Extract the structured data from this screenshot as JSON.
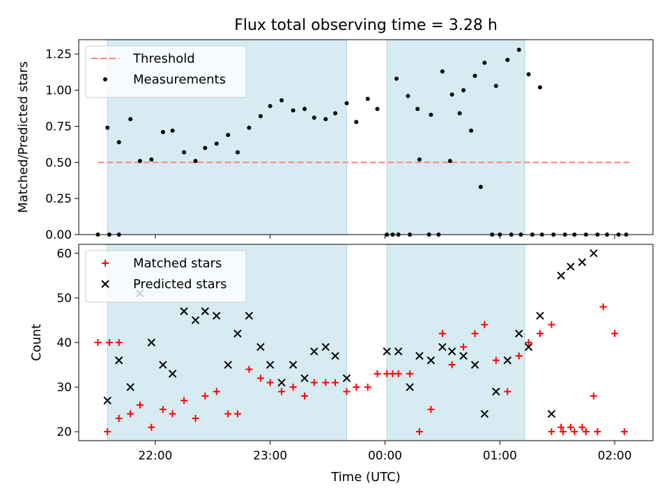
{
  "chart_data": [
    {
      "type": "scatter",
      "title": "Flux total observing time = 3.28 h",
      "xlabel": "",
      "ylabel": "Matched/Predicted stars",
      "xlim": [
        "21:20",
        "02:20"
      ],
      "ylim": [
        0,
        1.35
      ],
      "y_ticks": [
        "0.00",
        "0.25",
        "0.50",
        "0.75",
        "1.00",
        "1.25"
      ],
      "y_tick_values": [
        0,
        0.25,
        0.5,
        0.75,
        1.0,
        1.25
      ],
      "shaded_intervals": [
        [
          "21:35",
          "23:40"
        ],
        [
          "00:01",
          "01:13"
        ]
      ],
      "legend_position": "upper-left",
      "series": [
        {
          "name": "Threshold",
          "style": "dashed-line",
          "color": "#ff7f7f",
          "x": [
            "21:30",
            "02:08"
          ],
          "y": [
            0.5,
            0.5
          ]
        },
        {
          "name": "Measurements",
          "style": "dot",
          "color": "#000000",
          "x": [
            "21:30",
            "21:36",
            "21:41",
            "21:35",
            "21:41",
            "21:47",
            "21:52",
            "21:58",
            "22:04",
            "22:09",
            "22:15",
            "22:21",
            "22:26",
            "22:32",
            "22:38",
            "22:43",
            "22:49",
            "22:55",
            "23:00",
            "23:06",
            "23:12",
            "23:18",
            "23:23",
            "23:29",
            "23:34",
            "23:40",
            "23:45",
            "23:51",
            "23:56",
            "00:01",
            "00:04",
            "00:07",
            "00:13",
            "00:18",
            "00:24",
            "00:30",
            "00:35",
            "00:41",
            "00:47",
            "00:52",
            "00:58",
            "01:04",
            "01:10",
            "01:15",
            "01:21",
            "00:06",
            "00:12",
            "00:17",
            "00:23",
            "00:28",
            "00:34",
            "00:39",
            "00:45",
            "00:50",
            "00:56",
            "01:00",
            "01:06",
            "01:11",
            "01:17",
            "01:22",
            "01:28",
            "01:34",
            "01:39",
            "01:45",
            "01:51",
            "01:56",
            "02:02",
            "02:06"
          ],
          "y": [
            0,
            0,
            0,
            0.74,
            0.64,
            0.8,
            0.51,
            0.52,
            0.71,
            0.72,
            0.57,
            0.51,
            0.6,
            0.63,
            0.69,
            0.57,
            0.74,
            0.82,
            0.89,
            0.93,
            0.86,
            0.87,
            0.81,
            0.8,
            0.84,
            0.91,
            0.78,
            0.94,
            0.87,
            0,
            0,
            0,
            0,
            0.52,
            0.83,
            1.13,
            0.97,
            1.0,
            1.1,
            1.19,
            1.03,
            1.21,
            1.28,
            1.11,
            1.02,
            1.08,
            0.96,
            0.87,
            0,
            0,
            0.51,
            0.84,
            0.72,
            0.33,
            0,
            0,
            0,
            0,
            0,
            0,
            0,
            0,
            0,
            0,
            0,
            0,
            0,
            0
          ]
        }
      ]
    },
    {
      "type": "scatter",
      "title": "",
      "xlabel": "Time (UTC)",
      "ylabel": "Count",
      "xlim": [
        "21:20",
        "02:20"
      ],
      "ylim": [
        18,
        62
      ],
      "x_ticks": [
        "22:00",
        "23:00",
        "00:00",
        "01:00",
        "02:00"
      ],
      "y_ticks": [
        "20",
        "30",
        "40",
        "50",
        "60"
      ],
      "y_tick_values": [
        20,
        30,
        40,
        50,
        60
      ],
      "shaded_intervals": [
        [
          "21:35",
          "23:40"
        ],
        [
          "00:01",
          "01:13"
        ]
      ],
      "legend_position": "upper-left",
      "series": [
        {
          "name": "Matched stars",
          "style": "plus",
          "color": "#ff0000",
          "x": [
            "21:30",
            "21:36",
            "21:41",
            "21:35",
            "21:41",
            "21:47",
            "21:52",
            "21:58",
            "22:04",
            "22:09",
            "22:15",
            "22:21",
            "22:26",
            "22:32",
            "22:38",
            "22:43",
            "22:49",
            "22:55",
            "23:00",
            "23:06",
            "23:12",
            "23:18",
            "23:23",
            "23:29",
            "23:34",
            "23:40",
            "23:45",
            "23:51",
            "23:56",
            "00:01",
            "00:04",
            "00:07",
            "00:13",
            "00:18",
            "00:24",
            "00:30",
            "00:35",
            "00:41",
            "00:47",
            "00:52",
            "00:58",
            "01:04",
            "01:10",
            "01:15",
            "01:21",
            "01:27",
            "01:32",
            "01:37",
            "01:43",
            "01:49",
            "01:54",
            "02:00",
            "02:05",
            "01:27",
            "01:33",
            "01:39",
            "01:45",
            "01:51"
          ],
          "y": [
            40,
            40,
            40,
            20,
            23,
            24,
            26,
            21,
            25,
            24,
            27,
            23,
            28,
            29,
            24,
            24,
            34,
            32,
            31,
            29,
            30,
            28,
            31,
            31,
            31,
            29,
            30,
            30,
            33,
            33,
            33,
            33,
            33,
            20,
            25,
            42,
            35,
            39,
            42,
            44,
            36,
            29,
            37,
            40,
            42,
            44,
            21,
            21,
            21,
            28,
            48,
            42,
            20,
            20,
            20,
            20,
            20,
            20
          ]
        },
        {
          "name": "Predicted stars",
          "style": "x",
          "color": "#000000",
          "x": [
            "21:35",
            "21:41",
            "21:47",
            "21:52",
            "21:58",
            "22:04",
            "22:09",
            "22:15",
            "22:21",
            "22:26",
            "22:32",
            "22:38",
            "22:43",
            "22:49",
            "22:55",
            "23:00",
            "23:06",
            "23:12",
            "23:18",
            "23:23",
            "23:29",
            "23:34",
            "23:40",
            "00:01",
            "00:07",
            "00:13",
            "00:18",
            "00:24",
            "00:30",
            "00:35",
            "00:41",
            "00:47",
            "00:52",
            "00:58",
            "01:04",
            "01:10",
            "01:15",
            "01:21",
            "01:27",
            "01:32",
            "01:37",
            "01:43",
            "01:49"
          ],
          "y": [
            27,
            36,
            30,
            51,
            40,
            35,
            33,
            47,
            45,
            47,
            46,
            35,
            42,
            46,
            39,
            35,
            31,
            35,
            32,
            38,
            39,
            37,
            32,
            38,
            38,
            30,
            37,
            36,
            39,
            38,
            37,
            35,
            24,
            29,
            36,
            42,
            39,
            46,
            24,
            55,
            57,
            58,
            60
          ]
        }
      ]
    }
  ]
}
